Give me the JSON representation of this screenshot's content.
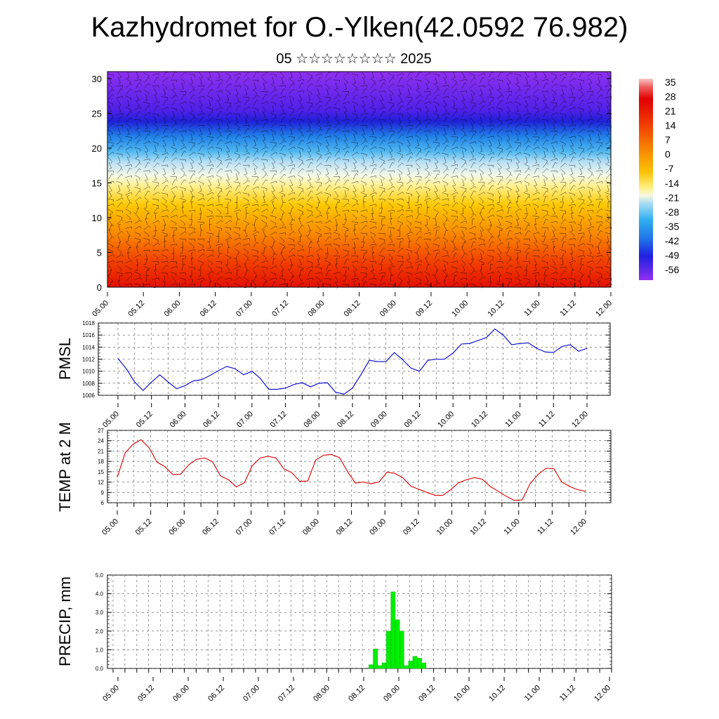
{
  "title": "Kazhydromet for O.-Ylken(42.0592 76.982)",
  "subtitle": "05 ☆☆☆☆☆☆☆☆ 2025",
  "chart_data": [
    {
      "type": "heatmap",
      "name": "cross-section",
      "x_tick_labels": [
        "05.00",
        "05.12",
        "06.00",
        "06.12",
        "07.00",
        "07.12",
        "08.00",
        "08.12",
        "09.00",
        "09.12",
        "10.00",
        "10.12",
        "11.00",
        "11.12",
        "12.00"
      ],
      "ylim": [
        0,
        31
      ],
      "y_ticks": [
        0,
        5,
        10,
        15,
        20,
        25,
        30
      ],
      "colorbar_labels": [
        "35",
        "28",
        "21",
        "14",
        "7",
        "0",
        "-7",
        "-14",
        "-21",
        "-28",
        "-35",
        "-42",
        "-49",
        "-56"
      ],
      "colorbar_range": [
        -60,
        38
      ],
      "colors": {
        "warm": "#e00000",
        "mid": "#ffff90",
        "cool": "#40b8f0",
        "cold": "#3010e0",
        "top": "#9030f0"
      }
    },
    {
      "type": "line",
      "name": "pmsl",
      "ylabel": "PMSL",
      "x_tick_labels": [
        "05.00",
        "05.12",
        "06.00",
        "06.12",
        "07.00",
        "07.12",
        "08.00",
        "08.12",
        "09.00",
        "09.12",
        "10.00",
        "10.12",
        "11.00",
        "11.12",
        "12.00"
      ],
      "ylim": [
        1006,
        1018
      ],
      "y_ticks": [
        1006,
        1008,
        1010,
        1012,
        1014,
        1016,
        1018
      ],
      "color": "#0000cc",
      "values": [
        1012.1,
        1010.4,
        1008.2,
        1006.8,
        1008.2,
        1009.4,
        1008.2,
        1007.1,
        1007.6,
        1008.4,
        1008.6,
        1009.3,
        1010.1,
        1010.8,
        1010.4,
        1009.4,
        1010.0,
        1008.8,
        1007.0,
        1007.0,
        1007.2,
        1007.8,
        1008.1,
        1007.4,
        1008.0,
        1008.1,
        1006.5,
        1006.2,
        1007.2,
        1009.4,
        1011.8,
        1011.6,
        1011.6,
        1013.1,
        1011.9,
        1010.5,
        1010.0,
        1011.8,
        1012.0,
        1012.0,
        1013.0,
        1014.5,
        1014.6,
        1015.1,
        1015.6,
        1017.0,
        1016.0,
        1014.4,
        1014.6,
        1014.7,
        1013.8,
        1013.2,
        1013.1,
        1014.1,
        1014.4,
        1013.3,
        1013.8
      ]
    },
    {
      "type": "line",
      "name": "temperature",
      "ylabel": "TEMP at 2 M",
      "x_tick_labels": [
        "05.00",
        "05.12",
        "06.00",
        "06.12",
        "07.00",
        "07.12",
        "08.00",
        "08.12",
        "09.00",
        "09.12",
        "10.00",
        "10.12",
        "11.00",
        "11.12",
        "12.00"
      ],
      "ylim": [
        6,
        27
      ],
      "y_ticks": [
        6,
        9,
        12,
        15,
        18,
        21,
        24,
        27
      ],
      "color": "#dd0000",
      "values": [
        13.4,
        20.5,
        23.0,
        24.3,
        22.0,
        17.8,
        16.5,
        14.2,
        14.3,
        17.0,
        18.6,
        19.0,
        17.9,
        13.8,
        12.7,
        10.6,
        11.8,
        16.7,
        19.0,
        19.5,
        19.0,
        15.8,
        14.7,
        12.2,
        12.3,
        18.4,
        19.8,
        20.0,
        19.1,
        15.1,
        11.7,
        12.0,
        11.5,
        12.1,
        14.9,
        14.5,
        13.2,
        10.8,
        9.9,
        9.0,
        8.2,
        8.1,
        9.8,
        11.8,
        12.7,
        13.3,
        12.8,
        10.7,
        9.3,
        7.9,
        6.7,
        6.8,
        11.5,
        14.2,
        16.0,
        15.9,
        12.0,
        10.7,
        9.8,
        9.3
      ]
    },
    {
      "type": "bar",
      "name": "precipitation",
      "ylabel": "PRECIP, mm",
      "x_tick_labels": [
        "05.00",
        "05.12",
        "06.00",
        "06.12",
        "07.00",
        "07.12",
        "08.00",
        "08.12",
        "09.00",
        "09.12",
        "10.00",
        "10.12",
        "11.00",
        "11.12",
        "12.00"
      ],
      "ylim": [
        0,
        5
      ],
      "y_tick_labels": [
        "0.0",
        "1.0",
        "2.0",
        "3.0",
        "4.0",
        "5.0"
      ],
      "color": "#00ee00",
      "values": [
        0,
        0,
        0,
        0,
        0,
        0,
        0,
        0,
        0,
        0,
        0,
        0,
        0,
        0,
        0,
        0,
        0,
        0,
        0,
        0,
        0,
        0,
        0,
        0,
        0,
        0,
        0,
        0,
        0,
        0,
        0,
        0,
        0,
        0,
        0,
        0,
        0,
        0,
        0,
        0,
        0,
        0,
        0,
        0,
        0,
        0,
        0,
        0,
        0,
        0,
        0,
        0,
        0,
        0,
        0,
        0,
        0,
        0.2,
        1.05,
        0.15,
        0.3,
        2.0,
        4.1,
        2.6,
        2.0,
        0.15,
        0.4,
        0.65,
        0.55,
        0.3,
        0,
        0,
        0,
        0,
        0,
        0,
        0,
        0,
        0,
        0,
        0,
        0,
        0,
        0,
        0,
        0,
        0,
        0,
        0,
        0,
        0,
        0,
        0,
        0,
        0,
        0,
        0,
        0,
        0,
        0,
        0,
        0,
        0,
        0,
        0,
        0,
        0,
        0,
        0,
        0,
        0,
        0
      ]
    }
  ]
}
